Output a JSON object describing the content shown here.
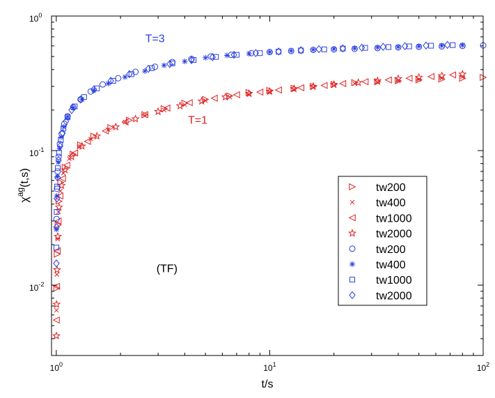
{
  "chart_data": {
    "type": "scatter",
    "xscale": "log",
    "yscale": "log",
    "xlim": [
      0.95,
      100
    ],
    "ylim": [
      0.003,
      1
    ],
    "xlabel": "t/s",
    "ylabel_main": "χ",
    "ylabel_sup": "ag",
    "ylabel_rest": "(t,s)",
    "x_ticks": [
      {
        "value": 1,
        "base": "10",
        "exp": "0"
      },
      {
        "value": 10,
        "base": "10",
        "exp": "1"
      },
      {
        "value": 100,
        "base": "10",
        "exp": "2"
      }
    ],
    "y_ticks": [
      {
        "value": 0.01,
        "base": "10",
        "exp": "-2"
      },
      {
        "value": 0.1,
        "base": "10",
        "exp": "-1"
      },
      {
        "value": 1,
        "base": "10",
        "exp": "0"
      }
    ],
    "annotations": [
      {
        "text": "T=3",
        "x": 2.9,
        "y": 0.64,
        "color": "#2a3fe0"
      },
      {
        "text": "T=1",
        "x": 4.6,
        "y": 0.158,
        "color": "#e02020"
      },
      {
        "text": "(TF)",
        "x": 3.3,
        "y": 0.0125,
        "color": "#000000"
      }
    ],
    "colors": {
      "red": "#e02020",
      "blue": "#2a3fe0"
    },
    "series": [
      {
        "name": "tw200",
        "group": "T=1",
        "color": "#e02020",
        "marker": "triangle-right",
        "points": [
          [
            1.005,
            0.0095
          ],
          [
            1.01,
            0.017
          ],
          [
            1.02,
            0.028
          ],
          [
            1.03,
            0.042
          ],
          [
            1.05,
            0.058
          ],
          [
            1.1,
            0.075
          ],
          [
            1.2,
            0.094
          ],
          [
            1.3,
            0.11
          ],
          [
            1.5,
            0.128
          ],
          [
            1.8,
            0.148
          ],
          [
            2.2,
            0.168
          ],
          [
            2.6,
            0.185
          ],
          [
            3.2,
            0.205
          ],
          [
            4,
            0.225
          ],
          [
            5,
            0.24
          ],
          [
            6.5,
            0.255
          ],
          [
            8,
            0.27
          ],
          [
            10,
            0.28
          ],
          [
            13,
            0.29
          ],
          [
            16,
            0.3
          ],
          [
            20,
            0.31
          ],
          [
            25,
            0.32
          ],
          [
            32,
            0.325
          ],
          [
            40,
            0.33
          ],
          [
            50,
            0.335
          ],
          [
            64,
            0.34
          ],
          [
            80,
            0.345
          ],
          [
            100,
            0.35
          ]
        ]
      },
      {
        "name": "tw400",
        "group": "T=1",
        "color": "#e02020",
        "marker": "x",
        "points": [
          [
            1.002,
            0.0065
          ],
          [
            1.006,
            0.012
          ],
          [
            1.015,
            0.022
          ],
          [
            1.025,
            0.035
          ],
          [
            1.045,
            0.05
          ],
          [
            1.08,
            0.068
          ],
          [
            1.15,
            0.087
          ],
          [
            1.28,
            0.106
          ],
          [
            1.45,
            0.122
          ],
          [
            1.75,
            0.143
          ],
          [
            2.1,
            0.163
          ],
          [
            2.6,
            0.182
          ],
          [
            3.2,
            0.2
          ],
          [
            4,
            0.219
          ],
          [
            5,
            0.235
          ],
          [
            6.5,
            0.25
          ],
          [
            8,
            0.262
          ],
          [
            10,
            0.273
          ],
          [
            13,
            0.285
          ],
          [
            16,
            0.295
          ],
          [
            20,
            0.305
          ],
          [
            25,
            0.315
          ],
          [
            32,
            0.322
          ],
          [
            40,
            0.33
          ],
          [
            50,
            0.337
          ],
          [
            64,
            0.345
          ],
          [
            80,
            0.352
          ]
        ]
      },
      {
        "name": "tw1000",
        "group": "T=1",
        "color": "#e02020",
        "marker": "triangle-left",
        "points": [
          [
            1.001,
            0.0055
          ],
          [
            1.004,
            0.0098
          ],
          [
            1.01,
            0.018
          ],
          [
            1.02,
            0.03
          ],
          [
            1.04,
            0.046
          ],
          [
            1.07,
            0.062
          ],
          [
            1.12,
            0.078
          ],
          [
            1.22,
            0.096
          ],
          [
            1.4,
            0.117
          ],
          [
            1.7,
            0.14
          ],
          [
            2.1,
            0.163
          ],
          [
            2.6,
            0.185
          ],
          [
            3.3,
            0.207
          ],
          [
            4.2,
            0.227
          ],
          [
            5.5,
            0.245
          ],
          [
            7,
            0.26
          ],
          [
            9,
            0.272
          ],
          [
            11,
            0.282
          ],
          [
            14,
            0.293
          ],
          [
            18,
            0.305
          ],
          [
            22,
            0.315
          ],
          [
            28,
            0.325
          ],
          [
            36,
            0.335
          ],
          [
            45,
            0.345
          ],
          [
            57,
            0.355
          ],
          [
            72,
            0.365
          ]
        ]
      },
      {
        "name": "tw2000",
        "group": "T=1",
        "color": "#e02020",
        "marker": "star",
        "points": [
          [
            1.001,
            0.0042
          ],
          [
            1.003,
            0.0072
          ],
          [
            1.008,
            0.013
          ],
          [
            1.016,
            0.023
          ],
          [
            1.03,
            0.038
          ],
          [
            1.06,
            0.055
          ],
          [
            1.1,
            0.072
          ],
          [
            1.18,
            0.09
          ],
          [
            1.32,
            0.108
          ],
          [
            1.55,
            0.128
          ],
          [
            1.9,
            0.15
          ],
          [
            2.35,
            0.172
          ],
          [
            3,
            0.195
          ],
          [
            3.8,
            0.215
          ],
          [
            4.8,
            0.233
          ],
          [
            6.2,
            0.25
          ],
          [
            8,
            0.265
          ],
          [
            10,
            0.275
          ],
          [
            13,
            0.288
          ],
          [
            16,
            0.3
          ],
          [
            20,
            0.31
          ],
          [
            26,
            0.32
          ],
          [
            32,
            0.33
          ],
          [
            40,
            0.342
          ],
          [
            50,
            0.35
          ],
          [
            64,
            0.36
          ],
          [
            80,
            0.37
          ]
        ]
      },
      {
        "name": "tw200",
        "group": "T=3",
        "color": "#2a3fe0",
        "marker": "circle",
        "points": [
          [
            1.003,
            0.031
          ],
          [
            1.008,
            0.052
          ],
          [
            1.015,
            0.07
          ],
          [
            1.025,
            0.09
          ],
          [
            1.04,
            0.112
          ],
          [
            1.06,
            0.133
          ],
          [
            1.09,
            0.158
          ],
          [
            1.13,
            0.18
          ],
          [
            1.2,
            0.21
          ],
          [
            1.3,
            0.24
          ],
          [
            1.45,
            0.275
          ],
          [
            1.65,
            0.31
          ],
          [
            1.95,
            0.345
          ],
          [
            2.35,
            0.385
          ],
          [
            2.9,
            0.42
          ],
          [
            3.5,
            0.455
          ],
          [
            4.3,
            0.48
          ],
          [
            5.3,
            0.5
          ],
          [
            6.6,
            0.515
          ],
          [
            8.2,
            0.53
          ],
          [
            10,
            0.54
          ],
          [
            12.6,
            0.55
          ],
          [
            16,
            0.56
          ],
          [
            20,
            0.565
          ],
          [
            25,
            0.57
          ],
          [
            32,
            0.578
          ],
          [
            40,
            0.585
          ],
          [
            50,
            0.59
          ],
          [
            64,
            0.595
          ],
          [
            80,
            0.6
          ],
          [
            100,
            0.605
          ]
        ]
      },
      {
        "name": "tw400",
        "group": "T=3",
        "color": "#2a3fe0",
        "marker": "asterisk",
        "points": [
          [
            1.002,
            0.026
          ],
          [
            1.006,
            0.046
          ],
          [
            1.012,
            0.064
          ],
          [
            1.022,
            0.082
          ],
          [
            1.035,
            0.104
          ],
          [
            1.055,
            0.126
          ],
          [
            1.085,
            0.15
          ],
          [
            1.13,
            0.178
          ],
          [
            1.2,
            0.208
          ],
          [
            1.32,
            0.24
          ],
          [
            1.5,
            0.28
          ],
          [
            1.75,
            0.315
          ],
          [
            2.1,
            0.352
          ],
          [
            2.6,
            0.39
          ],
          [
            3.2,
            0.43
          ],
          [
            4,
            0.46
          ],
          [
            5,
            0.49
          ],
          [
            6.3,
            0.51
          ],
          [
            8,
            0.525
          ],
          [
            10,
            0.54
          ],
          [
            12.6,
            0.552
          ],
          [
            16,
            0.562
          ],
          [
            20,
            0.57
          ],
          [
            25,
            0.577
          ],
          [
            32,
            0.585
          ],
          [
            40,
            0.59
          ],
          [
            50,
            0.597
          ],
          [
            64,
            0.603
          ],
          [
            80,
            0.608
          ]
        ]
      },
      {
        "name": "tw1000",
        "group": "T=3",
        "color": "#2a3fe0",
        "marker": "square",
        "points": [
          [
            1.001,
            0.019
          ],
          [
            1.004,
            0.035
          ],
          [
            1.009,
            0.054
          ],
          [
            1.017,
            0.074
          ],
          [
            1.03,
            0.096
          ],
          [
            1.05,
            0.12
          ],
          [
            1.08,
            0.146
          ],
          [
            1.13,
            0.177
          ],
          [
            1.22,
            0.213
          ],
          [
            1.35,
            0.25
          ],
          [
            1.55,
            0.29
          ],
          [
            1.85,
            0.33
          ],
          [
            2.25,
            0.37
          ],
          [
            2.8,
            0.41
          ],
          [
            3.5,
            0.445
          ],
          [
            4.4,
            0.472
          ],
          [
            5.6,
            0.497
          ],
          [
            7,
            0.515
          ],
          [
            9,
            0.53
          ],
          [
            11,
            0.543
          ],
          [
            14,
            0.555
          ],
          [
            18,
            0.565
          ],
          [
            22,
            0.573
          ],
          [
            28,
            0.58
          ],
          [
            36,
            0.588
          ],
          [
            45,
            0.595
          ],
          [
            57,
            0.602
          ],
          [
            72,
            0.608
          ]
        ]
      },
      {
        "name": "tw2000",
        "group": "T=3",
        "color": "#2a3fe0",
        "marker": "diamond",
        "points": [
          [
            1.001,
            0.0145
          ],
          [
            1.003,
            0.027
          ],
          [
            1.007,
            0.044
          ],
          [
            1.014,
            0.063
          ],
          [
            1.025,
            0.085
          ],
          [
            1.042,
            0.108
          ],
          [
            1.07,
            0.135
          ],
          [
            1.11,
            0.165
          ],
          [
            1.18,
            0.2
          ],
          [
            1.3,
            0.24
          ],
          [
            1.5,
            0.285
          ],
          [
            1.8,
            0.33
          ],
          [
            2.2,
            0.37
          ],
          [
            2.7,
            0.405
          ],
          [
            3.4,
            0.44
          ],
          [
            4.3,
            0.47
          ],
          [
            5.4,
            0.495
          ],
          [
            6.8,
            0.515
          ],
          [
            8.6,
            0.53
          ],
          [
            11,
            0.545
          ],
          [
            14,
            0.557
          ],
          [
            17,
            0.567
          ],
          [
            22,
            0.575
          ],
          [
            27,
            0.582
          ],
          [
            34,
            0.59
          ],
          [
            43,
            0.597
          ],
          [
            54,
            0.604
          ],
          [
            68,
            0.61
          ]
        ]
      }
    ]
  }
}
